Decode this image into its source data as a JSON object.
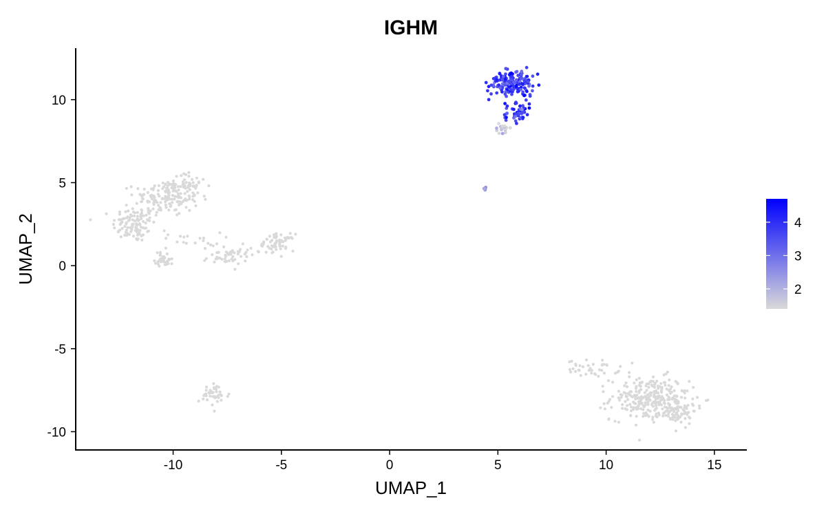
{
  "chart_data": {
    "type": "scatter",
    "title": "IGHM",
    "xlabel": "UMAP_1",
    "ylabel": "UMAP_2",
    "xlim": [
      -14.5,
      16.5
    ],
    "ylim": [
      -11.1,
      13.1
    ],
    "xticks": [
      -10,
      -5,
      0,
      5,
      10,
      15
    ],
    "yticks": [
      -10,
      -5,
      0,
      5,
      10
    ],
    "xtick_labels": [
      "-10",
      "-5",
      "0",
      "5",
      "10",
      "15"
    ],
    "ytick_labels": [
      "-10",
      "-5",
      "0",
      "5",
      "10"
    ],
    "grid": false,
    "legend": {
      "placement": "right",
      "type": "colorbar",
      "range": [
        1.4,
        4.7
      ],
      "ticks": [
        2,
        3,
        4
      ],
      "tick_labels": [
        "2",
        "3",
        "4"
      ],
      "low_color": "#d9d9d9",
      "high_color": "#0000ff"
    },
    "colors": {
      "low": "#d9d9d9",
      "high": "#0000ff"
    },
    "clusters": [
      {
        "center": [
          -11.8,
          2.5
        ],
        "spread": [
          0.5,
          0.55
        ],
        "n": 110,
        "expression": 0
      },
      {
        "center": [
          -10.3,
          4.1
        ],
        "spread": [
          0.75,
          0.55
        ],
        "n": 150,
        "expression": 0
      },
      {
        "center": [
          -9.4,
          4.8
        ],
        "spread": [
          0.5,
          0.4
        ],
        "n": 50,
        "expression": 0
      },
      {
        "center": [
          -10.4,
          0.4
        ],
        "spread": [
          0.22,
          0.22
        ],
        "n": 35,
        "expression": 0
      },
      {
        "center": [
          -9.2,
          1.5
        ],
        "spread": [
          0.7,
          0.25
        ],
        "n": 20,
        "expression": 0
      },
      {
        "center": [
          -7.6,
          0.5
        ],
        "spread": [
          0.5,
          0.25
        ],
        "n": 40,
        "expression": 0
      },
      {
        "center": [
          -6.4,
          0.9
        ],
        "spread": [
          0.5,
          0.3
        ],
        "n": 15,
        "expression": 0
      },
      {
        "center": [
          -5.1,
          1.4
        ],
        "spread": [
          0.35,
          0.25
        ],
        "n": 60,
        "expression": 0
      },
      {
        "center": [
          -8.1,
          -7.8
        ],
        "spread": [
          0.35,
          0.35
        ],
        "n": 40,
        "expression": 0
      },
      {
        "center": [
          5.7,
          11.0
        ],
        "spread": [
          0.55,
          0.42
        ],
        "n": 170,
        "expression": 3.8
      },
      {
        "center": [
          5.9,
          9.2
        ],
        "spread": [
          0.28,
          0.35
        ],
        "n": 50,
        "expression": 4.0
      },
      {
        "center": [
          5.2,
          8.3
        ],
        "spread": [
          0.2,
          0.15
        ],
        "n": 20,
        "expression": 1.6
      },
      {
        "center": [
          4.4,
          4.65
        ],
        "spread": [
          0.05,
          0.05
        ],
        "n": 6,
        "expression": 2.2
      },
      {
        "center": [
          9.4,
          -6.2
        ],
        "spread": [
          0.6,
          0.25
        ],
        "n": 40,
        "expression": 0
      },
      {
        "center": [
          12.0,
          -8.0
        ],
        "spread": [
          0.9,
          0.65
        ],
        "n": 260,
        "expression": 0
      },
      {
        "center": [
          13.2,
          -8.7
        ],
        "spread": [
          0.5,
          0.4
        ],
        "n": 80,
        "expression": 0
      }
    ]
  }
}
